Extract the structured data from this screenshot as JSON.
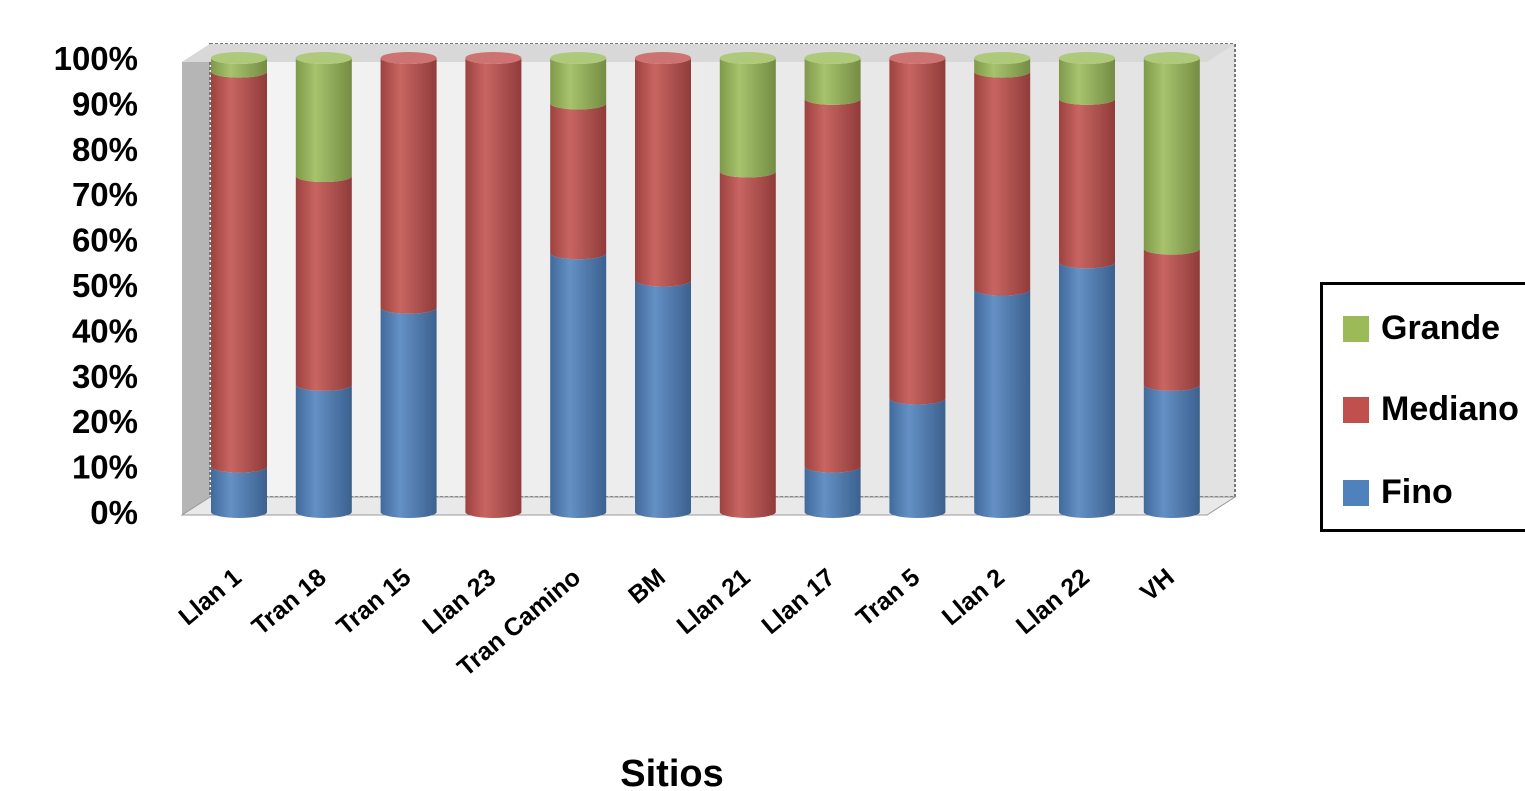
{
  "chart_data": {
    "type": "bar",
    "stacked": true,
    "percent": true,
    "style": "3d-cylinder",
    "xlabel": "Sitios",
    "ylabel": "",
    "ylim": [
      0,
      100
    ],
    "yticks": [
      "0%",
      "10%",
      "20%",
      "30%",
      "40%",
      "50%",
      "60%",
      "70%",
      "80%",
      "90%",
      "100%"
    ],
    "categories": [
      "Llan 1",
      "Tran 18",
      "Tran 15",
      "Llan 23",
      "Tran Camino",
      "BM",
      "Llan 21",
      "Llan 17",
      "Tran 5",
      "Llan 2",
      "Llan 22",
      "VH"
    ],
    "series": [
      {
        "name": "Fino",
        "color": "#4f81bd",
        "values": [
          10,
          28,
          45,
          0,
          57,
          51,
          0,
          10,
          25,
          49,
          55,
          28
        ]
      },
      {
        "name": "Mediano",
        "color": "#c0504d",
        "values": [
          87,
          46,
          55,
          100,
          33,
          49,
          75,
          81,
          75,
          48,
          36,
          30
        ]
      },
      {
        "name": "Grande",
        "color": "#9bbb59",
        "values": [
          3,
          26,
          0,
          0,
          10,
          0,
          25,
          9,
          0,
          3,
          9,
          42
        ]
      }
    ],
    "grid": false,
    "legend_position": "right"
  },
  "legend": {
    "items": [
      {
        "label": "Grande",
        "color": "#9bbb59"
      },
      {
        "label": "Mediano",
        "color": "#c0504d"
      },
      {
        "label": "Fino",
        "color": "#4f81bd"
      }
    ]
  }
}
